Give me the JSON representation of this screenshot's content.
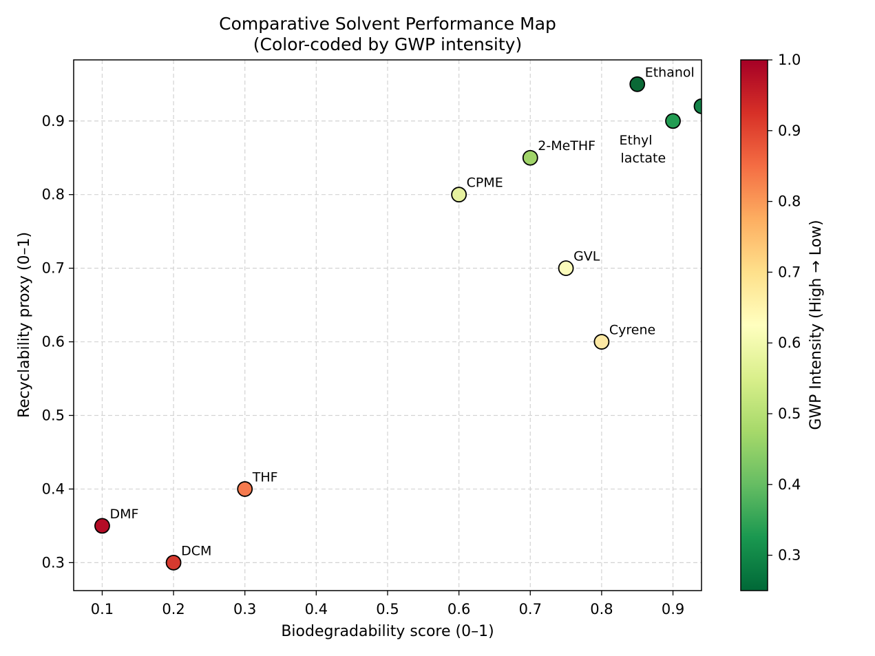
{
  "chart_data": {
    "type": "scatter",
    "title": "Comparative Solvent Performance Map",
    "subtitle": "(Color-coded by GWP intensity)",
    "xlabel": "Biodegradability score (0–1)",
    "ylabel": "Recyclability proxy (0–1)",
    "xlim": [
      0.06,
      0.94
    ],
    "ylim": [
      0.262,
      0.983
    ],
    "xticks": [
      "0.1",
      "0.2",
      "0.3",
      "0.4",
      "0.5",
      "0.6",
      "0.7",
      "0.8",
      "0.9"
    ],
    "yticks": [
      "0.3",
      "0.4",
      "0.5",
      "0.6",
      "0.7",
      "0.8",
      "0.9"
    ],
    "grid": true,
    "colormap": "RdYlGn_r",
    "colorbar": {
      "label": "GWP Intensity (High → Low)",
      "range": [
        0.25,
        1.0
      ],
      "ticks": [
        "0.3",
        "0.4",
        "0.5",
        "0.6",
        "0.7",
        "0.8",
        "0.9",
        "1.0"
      ]
    },
    "points": [
      {
        "name": "DMF",
        "x": 0.1,
        "y": 0.35,
        "gwp": 0.97,
        "color": "#b40c26"
      },
      {
        "name": "DCM",
        "x": 0.2,
        "y": 0.3,
        "gwp": 0.92,
        "color": "#d63a2f"
      },
      {
        "name": "THF",
        "x": 0.3,
        "y": 0.4,
        "gwp": 0.82,
        "color": "#f57a4e"
      },
      {
        "name": "CPME",
        "x": 0.6,
        "y": 0.8,
        "gwp": 0.57,
        "color": "#e6f19f"
      },
      {
        "name": "2-MeTHF",
        "x": 0.7,
        "y": 0.85,
        "gwp": 0.48,
        "color": "#a0d469"
      },
      {
        "name": "GVL",
        "x": 0.75,
        "y": 0.7,
        "gwp": 0.62,
        "color": "#fcfcbb"
      },
      {
        "name": "Cyrene",
        "x": 0.8,
        "y": 0.6,
        "gwp": 0.66,
        "color": "#fde9a4"
      },
      {
        "name": "Ethanol",
        "x": 0.85,
        "y": 0.95,
        "gwp": 0.25,
        "color": "#0a6936"
      },
      {
        "name": "Ethyl lactate",
        "x": 0.9,
        "y": 0.9,
        "gwp": 0.33,
        "color": "#229c52"
      },
      {
        "name": "",
        "x": 0.94,
        "y": 0.92,
        "gwp": 0.3,
        "color": "#138348"
      }
    ]
  }
}
